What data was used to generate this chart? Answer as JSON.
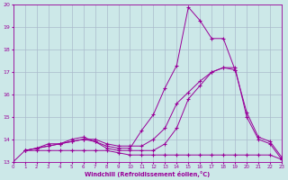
{
  "line1_x": [
    0,
    1,
    2,
    3,
    4,
    5,
    6,
    7,
    8,
    9,
    10,
    11,
    12,
    13,
    14,
    15,
    16,
    17,
    18,
    19
  ],
  "line1_y": [
    13.0,
    13.5,
    13.6,
    13.7,
    13.8,
    13.9,
    14.0,
    13.9,
    13.7,
    13.6,
    13.6,
    14.4,
    15.1,
    16.3,
    17.3,
    19.9,
    19.3,
    18.5,
    18.5,
    17.1
  ],
  "line2_x": [
    1,
    2,
    3,
    4,
    5,
    6,
    7,
    8,
    9,
    10,
    11,
    12,
    13,
    14,
    15,
    16,
    17,
    18,
    19,
    20,
    21,
    22,
    23
  ],
  "line2_y": [
    13.5,
    13.6,
    13.8,
    13.8,
    14.0,
    14.1,
    13.9,
    13.6,
    13.5,
    13.5,
    13.5,
    13.5,
    13.8,
    14.5,
    15.8,
    16.4,
    17.0,
    17.2,
    17.2,
    15.0,
    14.0,
    13.8,
    13.1
  ],
  "line3_x": [
    1,
    2,
    3,
    4,
    5,
    6,
    7,
    8,
    9,
    10,
    11,
    12,
    13,
    14,
    15,
    16,
    17,
    18,
    19,
    20,
    21,
    22,
    23
  ],
  "line3_y": [
    13.5,
    13.6,
    13.7,
    13.8,
    13.9,
    14.0,
    14.0,
    13.8,
    13.7,
    13.7,
    13.7,
    14.0,
    14.5,
    15.6,
    16.1,
    16.6,
    17.0,
    17.2,
    17.1,
    15.2,
    14.1,
    13.9,
    13.2
  ],
  "line4_x": [
    1,
    2,
    3,
    4,
    5,
    6,
    7,
    8,
    9,
    10,
    11,
    12,
    13,
    14,
    15,
    16,
    17,
    18,
    19,
    20,
    21,
    22,
    23
  ],
  "line4_y": [
    13.5,
    13.5,
    13.5,
    13.5,
    13.5,
    13.5,
    13.5,
    13.5,
    13.4,
    13.3,
    13.3,
    13.3,
    13.3,
    13.3,
    13.3,
    13.3,
    13.3,
    13.3,
    13.3,
    13.3,
    13.3,
    13.3,
    13.1
  ],
  "line_color": "#990099",
  "bg_color": "#cce8e8",
  "grid_color": "#aabbcc",
  "xlabel": "Windchill (Refroidissement éolien,°C)",
  "ylim": [
    13,
    20
  ],
  "xlim": [
    0,
    23
  ],
  "yticks": [
    13,
    14,
    15,
    16,
    17,
    18,
    19,
    20
  ],
  "xticks": [
    0,
    1,
    2,
    3,
    4,
    5,
    6,
    7,
    8,
    9,
    10,
    11,
    12,
    13,
    14,
    15,
    16,
    17,
    18,
    19,
    20,
    21,
    22,
    23
  ]
}
